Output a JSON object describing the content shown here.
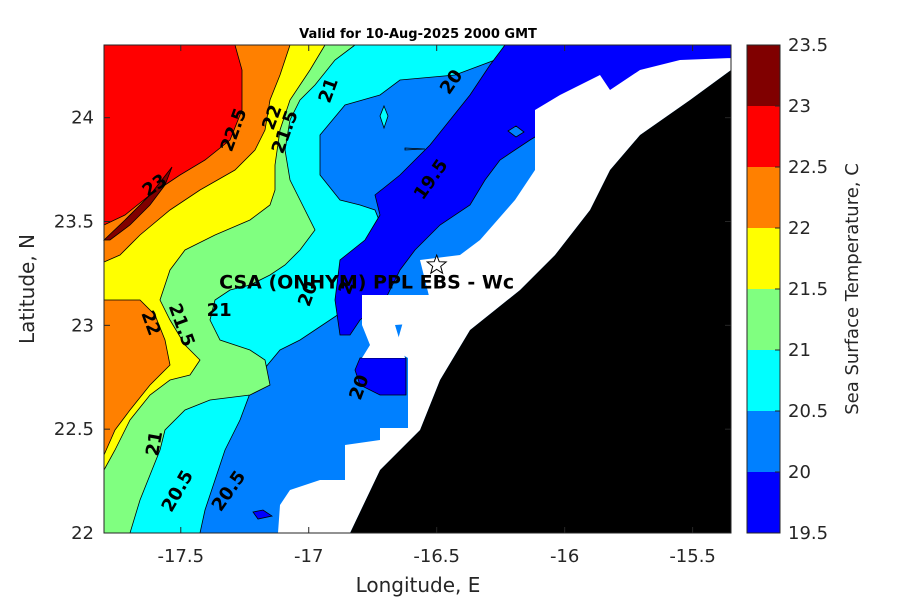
{
  "chart_data": {
    "type": "heatmap",
    "title": "Valid for 10-Aug-2025 2000 GMT",
    "xlabel": "Longitude, E",
    "ylabel": "Latitude, N",
    "xlim": [
      -17.8,
      -15.35
    ],
    "ylim": [
      22.0,
      24.35
    ],
    "x_ticks": [
      "-17.5",
      "-17",
      "-16.5",
      "-16",
      "-15.5"
    ],
    "y_ticks": [
      "22",
      "22.5",
      "23",
      "23.5",
      "24"
    ],
    "colorbar": {
      "label": "Sea Surface Temperature, C",
      "ticks": [
        "19.5",
        "20",
        "20.5",
        "21",
        "21.5",
        "22",
        "22.5",
        "23",
        "23.5"
      ],
      "levels": [
        {
          "range": [
            19.5,
            20.0
          ],
          "color": "#0000ff"
        },
        {
          "range": [
            20.0,
            20.5
          ],
          "color": "#0080ff"
        },
        {
          "range": [
            20.5,
            21.0
          ],
          "color": "#00ffff"
        },
        {
          "range": [
            21.0,
            21.5
          ],
          "color": "#80ff80"
        },
        {
          "range": [
            21.5,
            22.0
          ],
          "color": "#ffff00"
        },
        {
          "range": [
            22.0,
            22.5
          ],
          "color": "#ff8000"
        },
        {
          "range": [
            22.5,
            23.0
          ],
          "color": "#ff0000"
        },
        {
          "range": [
            23.0,
            23.5
          ],
          "color": "#800000"
        }
      ]
    },
    "contour_labels": [
      {
        "text": "23",
        "lon": -17.6,
        "lat": 23.67
      },
      {
        "text": "22.5",
        "lon": -17.29,
        "lat": 23.94
      },
      {
        "text": "22",
        "lon": -17.14,
        "lat": 24.0
      },
      {
        "text": "21.5",
        "lon": -17.09,
        "lat": 23.93
      },
      {
        "text": "21",
        "lon": -16.92,
        "lat": 24.13
      },
      {
        "text": "20",
        "lon": -16.44,
        "lat": 24.17
      },
      {
        "text": "19.5",
        "lon": -16.52,
        "lat": 23.7
      },
      {
        "text": "21",
        "lon": -17.35,
        "lat": 23.07
      },
      {
        "text": "22",
        "lon": -17.62,
        "lat": 23.01
      },
      {
        "text": "21.5",
        "lon": -17.5,
        "lat": 23.0
      },
      {
        "text": "20",
        "lon": -17.0,
        "lat": 23.15
      },
      {
        "text": "2",
        "lon": -16.85,
        "lat": 23.18
      },
      {
        "text": "20",
        "lon": -16.8,
        "lat": 22.7
      },
      {
        "text": "21",
        "lon": -17.6,
        "lat": 22.43
      },
      {
        "text": "20.5",
        "lon": -17.51,
        "lat": 22.2
      },
      {
        "text": "20.5",
        "lon": -17.31,
        "lat": 22.2
      }
    ],
    "annotation": {
      "text": "CSA (ONHYM) PPL EBS  - Wc",
      "lon": -17.35,
      "lat": 23.21
    },
    "marker": {
      "symbol": "star",
      "lon": -16.5,
      "lat": 23.29
    }
  }
}
